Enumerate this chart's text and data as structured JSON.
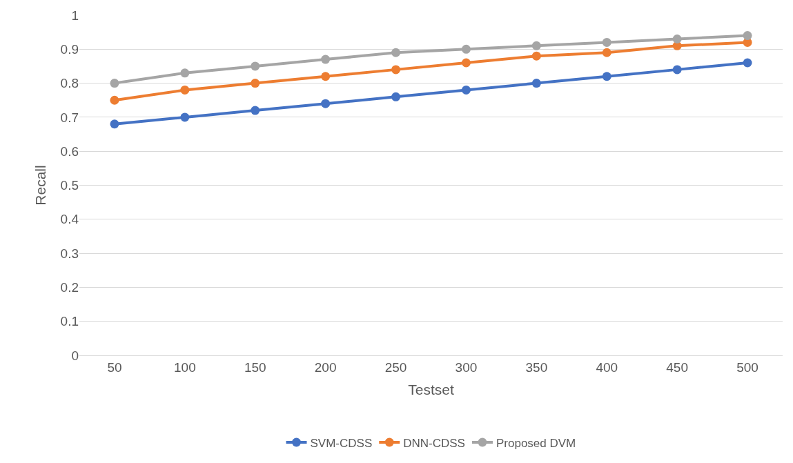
{
  "chart_data": {
    "type": "line",
    "xlabel": "Testset",
    "ylabel": "Recall",
    "categories": [
      "50",
      "100",
      "150",
      "200",
      "250",
      "300",
      "350",
      "400",
      "450",
      "500"
    ],
    "series": [
      {
        "name": "SVM-CDSS",
        "color": "#4472c4",
        "values": [
          0.68,
          0.7,
          0.72,
          0.74,
          0.76,
          0.78,
          0.8,
          0.82,
          0.84,
          0.86
        ]
      },
      {
        "name": "DNN-CDSS",
        "color": "#ed7d31",
        "values": [
          0.75,
          0.78,
          0.8,
          0.82,
          0.84,
          0.86,
          0.88,
          0.89,
          0.91,
          0.92
        ]
      },
      {
        "name": "Proposed DVM",
        "color": "#a5a5a5",
        "values": [
          0.8,
          0.83,
          0.85,
          0.87,
          0.89,
          0.9,
          0.91,
          0.92,
          0.93,
          0.94
        ]
      }
    ],
    "ylim": [
      0,
      1
    ],
    "yticks": [
      0,
      0.1,
      0.2,
      0.3,
      0.4,
      0.5,
      0.6,
      0.7,
      0.8,
      0.9,
      1
    ],
    "grid": "y",
    "legend": "bottom",
    "marker": "circle",
    "line_style": "solid"
  }
}
